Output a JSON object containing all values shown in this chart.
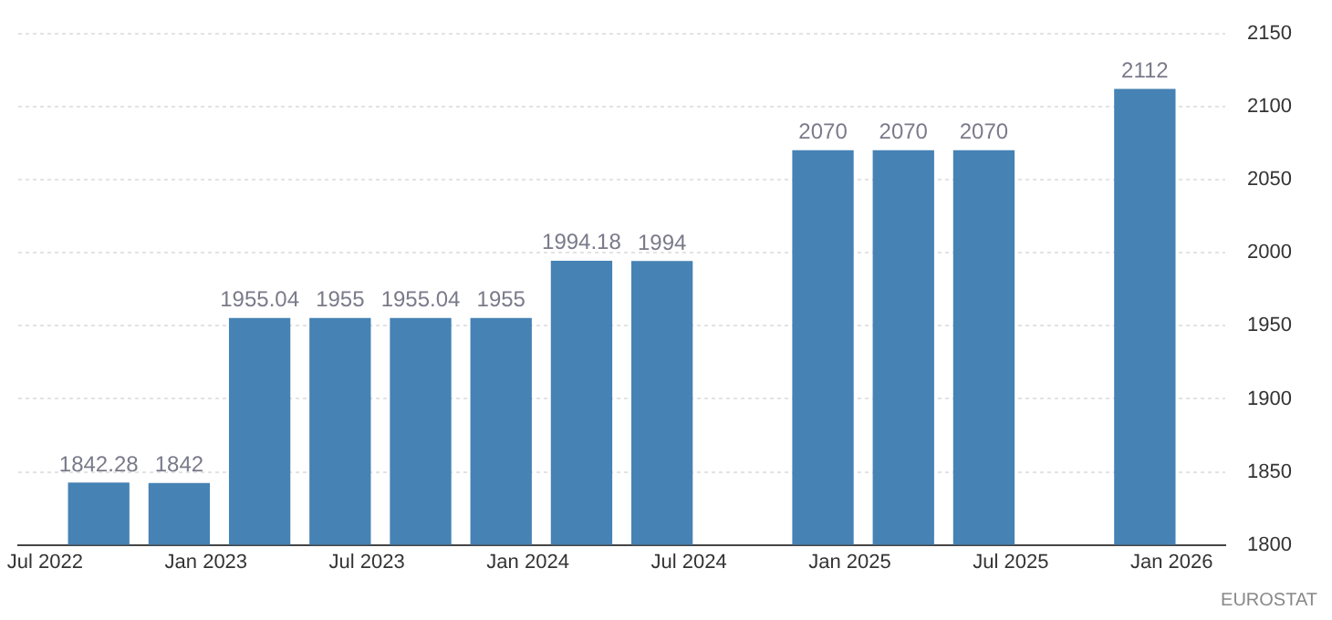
{
  "chart_data": {
    "type": "bar",
    "x": [
      "2022-09",
      "2022-12",
      "2023-03",
      "2023-06",
      "2023-09",
      "2023-12",
      "2024-03",
      "2024-06",
      "2024-12",
      "2025-03",
      "2025-06",
      "2025-12"
    ],
    "values": [
      1842.28,
      1842,
      1955.04,
      1955,
      1955.04,
      1955,
      1994.18,
      1994,
      2070,
      2070,
      2070,
      2112
    ],
    "color": "#4682b4",
    "xlim": [
      "2022-06",
      "2026-03"
    ],
    "xticks": [
      {
        "value": "2022-07",
        "label": "Jul 2022"
      },
      {
        "value": "2023-01",
        "label": "Jan 2023"
      },
      {
        "value": "2023-07",
        "label": "Jul 2023"
      },
      {
        "value": "2024-01",
        "label": "Jan 2024"
      },
      {
        "value": "2024-07",
        "label": "Jul 2024"
      },
      {
        "value": "2025-01",
        "label": "Jan 2025"
      },
      {
        "value": "2025-07",
        "label": "Jul 2025"
      },
      {
        "value": "2026-01",
        "label": "Jan 2026"
      }
    ],
    "ylim": [
      1800,
      2150
    ],
    "yticks": [
      1800,
      1850,
      1900,
      1950,
      2000,
      2050,
      2100,
      2150
    ],
    "grid": "y",
    "data_labels": true,
    "annotations": [
      "EUROSTAT"
    ]
  }
}
